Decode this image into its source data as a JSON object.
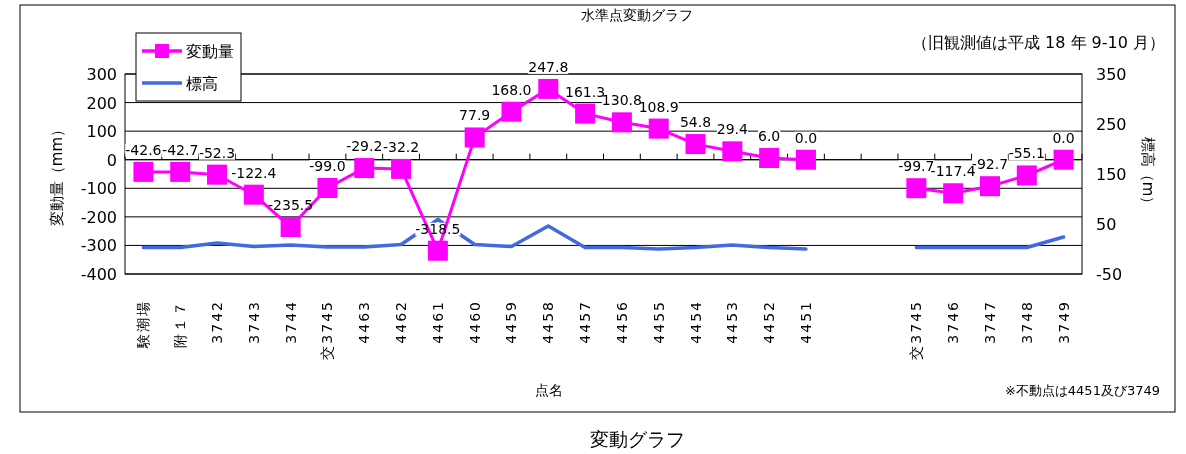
{
  "chart_data": {
    "type": "line",
    "title": "水準点変動グラフ",
    "subtitle": "（旧観測値は平成 18 年 9-10 月）",
    "xlabel": "点名",
    "ylabel": "変動量（mm）",
    "y2label": "標高（m）",
    "categories": [
      "験潮場",
      "附１７",
      "3742",
      "3743",
      "3744",
      "交3745",
      "4463",
      "4462",
      "4461",
      "4460",
      "4459",
      "4458",
      "4457",
      "4456",
      "4455",
      "4454",
      "4453",
      "4452",
      "4451",
      null,
      null,
      "交3745",
      "3746",
      "3747",
      "3748",
      "3749"
    ],
    "series": [
      {
        "name": "変動量",
        "color": "#ff00ff",
        "marker": "square",
        "values": [
          -42.6,
          -42.7,
          -52.3,
          -122.4,
          -235.5,
          -99.0,
          -29.2,
          -32.2,
          -318.5,
          77.9,
          168.0,
          247.8,
          161.3,
          130.8,
          108.9,
          54.8,
          29.4,
          6.0,
          0.0,
          null,
          null,
          -99.7,
          -117.4,
          -92.7,
          -55.1,
          0.0
        ],
        "value_labels": [
          "-42.6",
          "-42.7",
          "-52.3",
          "-122.4",
          "-235.5",
          "-99.0",
          "-29.2",
          "-32.2",
          "-318.5",
          "77.9",
          "168.0",
          "247.8",
          "161.3",
          "130.8",
          "108.9",
          "54.8",
          "29.4",
          "6.0",
          "0.0",
          null,
          null,
          "-99.7",
          "-117.4",
          "-92.7",
          "-55.1",
          "0.0"
        ]
      },
      {
        "name": "標高",
        "color": "#4169e1",
        "marker": "none",
        "axis": "y2",
        "values": [
          3,
          3,
          12,
          5,
          8,
          4,
          4,
          9,
          59,
          9,
          5,
          46,
          3,
          3,
          0,
          3,
          8,
          3,
          0,
          null,
          null,
          3,
          3,
          3,
          3,
          24
        ]
      }
    ],
    "ylim": [
      -400,
      300
    ],
    "yticks": [
      -400,
      -300,
      -200,
      -100,
      0,
      100,
      200,
      300
    ],
    "y2lim": [
      -50,
      350
    ],
    "y2ticks": [
      -50,
      50,
      150,
      250,
      350
    ],
    "grid": "y",
    "legend": "top left",
    "annotations": [
      "※不動点は4451及び3749",
      "変動グラフ"
    ]
  }
}
